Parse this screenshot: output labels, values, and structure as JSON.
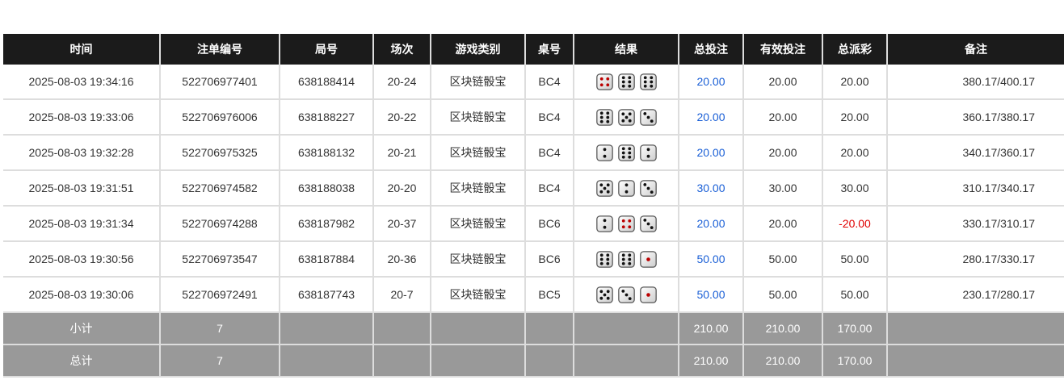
{
  "headers": [
    "时间",
    "注单编号",
    "局号",
    "场次",
    "游戏类别",
    "桌号",
    "结果",
    "总投注",
    "有效投注",
    "总派彩",
    "备注"
  ],
  "rows": [
    {
      "time": "2025-08-03 19:34:16",
      "order": "522706977401",
      "round": "638188414",
      "session": "20-24",
      "game": "区块链骰宝",
      "table": "BC4",
      "dice": [
        4,
        6,
        6
      ],
      "bet": "20.00",
      "valid": "20.00",
      "payout": "20.00",
      "note": "380.17/400.17"
    },
    {
      "time": "2025-08-03 19:33:06",
      "order": "522706976006",
      "round": "638188227",
      "session": "20-22",
      "game": "区块链骰宝",
      "table": "BC4",
      "dice": [
        6,
        5,
        3
      ],
      "bet": "20.00",
      "valid": "20.00",
      "payout": "20.00",
      "note": "360.17/380.17"
    },
    {
      "time": "2025-08-03 19:32:28",
      "order": "522706975325",
      "round": "638188132",
      "session": "20-21",
      "game": "区块链骰宝",
      "table": "BC4",
      "dice": [
        2,
        6,
        2
      ],
      "bet": "20.00",
      "valid": "20.00",
      "payout": "20.00",
      "note": "340.17/360.17"
    },
    {
      "time": "2025-08-03 19:31:51",
      "order": "522706974582",
      "round": "638188038",
      "session": "20-20",
      "game": "区块链骰宝",
      "table": "BC4",
      "dice": [
        5,
        2,
        3
      ],
      "bet": "30.00",
      "valid": "30.00",
      "payout": "30.00",
      "note": "310.17/340.17"
    },
    {
      "time": "2025-08-03 19:31:34",
      "order": "522706974288",
      "round": "638187982",
      "session": "20-37",
      "game": "区块链骰宝",
      "table": "BC6",
      "dice": [
        2,
        4,
        3
      ],
      "bet": "20.00",
      "valid": "20.00",
      "payout": "-20.00",
      "note": "330.17/310.17"
    },
    {
      "time": "2025-08-03 19:30:56",
      "order": "522706973547",
      "round": "638187884",
      "session": "20-36",
      "game": "区块链骰宝",
      "table": "BC6",
      "dice": [
        6,
        6,
        1
      ],
      "bet": "50.00",
      "valid": "50.00",
      "payout": "50.00",
      "note": "280.17/330.17"
    },
    {
      "time": "2025-08-03 19:30:06",
      "order": "522706972491",
      "round": "638187743",
      "session": "20-7",
      "game": "区块链骰宝",
      "table": "BC5",
      "dice": [
        5,
        3,
        1
      ],
      "bet": "50.00",
      "valid": "50.00",
      "payout": "50.00",
      "note": "230.17/280.17"
    }
  ],
  "subtotal": {
    "label": "小计",
    "count": "7",
    "bet": "210.00",
    "valid": "210.00",
    "payout": "170.00"
  },
  "total": {
    "label": "总计",
    "count": "7",
    "bet": "210.00",
    "valid": "210.00",
    "payout": "170.00"
  },
  "colors": {
    "bet": "#1a5fd6",
    "negative": "#e00000",
    "header": "#1b1b1b",
    "summary": "#999999"
  }
}
